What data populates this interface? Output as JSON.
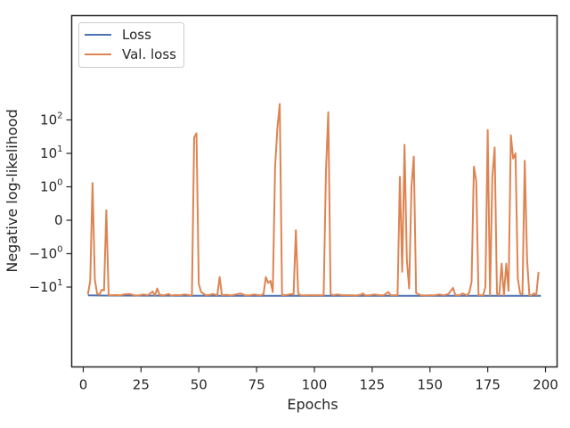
{
  "chart_data": {
    "type": "line",
    "title": "",
    "xlabel": "Epochs",
    "ylabel": "Negative log-likelihood",
    "xscale": "linear",
    "yscale": "symlog",
    "xlim": [
      -5,
      205
    ],
    "xticks": [
      {
        "value": 0,
        "label": "0"
      },
      {
        "value": 25,
        "label": "25"
      },
      {
        "value": 50,
        "label": "50"
      },
      {
        "value": 75,
        "label": "75"
      },
      {
        "value": 100,
        "label": "100"
      },
      {
        "value": 125,
        "label": "125"
      },
      {
        "value": 150,
        "label": "150"
      },
      {
        "value": 175,
        "label": "175"
      },
      {
        "value": 200,
        "label": "200"
      }
    ],
    "yticks": [
      {
        "value": -10,
        "base": "−10",
        "exp": "1"
      },
      {
        "value": -1,
        "base": "−10",
        "exp": "0"
      },
      {
        "value": 0,
        "base": "0",
        "exp": ""
      },
      {
        "value": 1,
        "base": "10",
        "exp": "0"
      },
      {
        "value": 10,
        "base": "10",
        "exp": "1"
      },
      {
        "value": 100,
        "base": "10",
        "exp": "2"
      }
    ],
    "grid": false,
    "legend_position": "top-left",
    "series": [
      {
        "name": "Loss",
        "color": "#4c72b0",
        "points": [
          [
            2,
            -17.6
          ],
          [
            10,
            -17.9
          ],
          [
            30,
            -18.0
          ],
          [
            60,
            -18.1
          ],
          [
            100,
            -18.2
          ],
          [
            150,
            -18.2
          ],
          [
            198,
            -18.3
          ]
        ]
      },
      {
        "name": "Val. loss",
        "color": "#dd8452",
        "points": [
          [
            2,
            -16.5
          ],
          [
            3,
            -6.5
          ],
          [
            4,
            1.3
          ],
          [
            5,
            -6.0
          ],
          [
            6,
            -15.5
          ],
          [
            7,
            -17.0
          ],
          [
            8,
            -12.0
          ],
          [
            9,
            -12.5
          ],
          [
            10,
            0.3
          ],
          [
            11,
            -17.5
          ],
          [
            12,
            -17.5
          ],
          [
            14,
            -17.3
          ],
          [
            16,
            -17.6
          ],
          [
            18,
            -16.3
          ],
          [
            20,
            -16.0
          ],
          [
            22,
            -17.5
          ],
          [
            24,
            -17.8
          ],
          [
            26,
            -16.5
          ],
          [
            28,
            -17.5
          ],
          [
            30,
            -13.5
          ],
          [
            31,
            -17.8
          ],
          [
            32,
            -11.0
          ],
          [
            33,
            -17.0
          ],
          [
            35,
            -17.5
          ],
          [
            37,
            -16.0
          ],
          [
            38,
            -17.8
          ],
          [
            40,
            -17.3
          ],
          [
            42,
            -17.5
          ],
          [
            44,
            -16.5
          ],
          [
            46,
            -17.5
          ],
          [
            47,
            -17.6
          ],
          [
            48,
            30.0
          ],
          [
            49,
            40.0
          ],
          [
            50,
            -8.0
          ],
          [
            51,
            -14.0
          ],
          [
            53,
            -17.5
          ],
          [
            55,
            -17.0
          ],
          [
            56,
            -16.0
          ],
          [
            58,
            -17.5
          ],
          [
            59,
            -5.0
          ],
          [
            60,
            -17.5
          ],
          [
            62,
            -17.0
          ],
          [
            64,
            -17.8
          ],
          [
            66,
            -16.5
          ],
          [
            68,
            -15.5
          ],
          [
            70,
            -17.5
          ],
          [
            72,
            -17.6
          ],
          [
            74,
            -16.5
          ],
          [
            76,
            -17.5
          ],
          [
            77,
            -17.5
          ],
          [
            78,
            -16.0
          ],
          [
            79,
            -5.0
          ],
          [
            80,
            -7.5
          ],
          [
            81,
            -6.5
          ],
          [
            82,
            -14.0
          ],
          [
            83,
            4.0
          ],
          [
            84,
            60.0
          ],
          [
            85,
            300.0
          ],
          [
            86,
            -17.5
          ],
          [
            88,
            -17.3
          ],
          [
            90,
            -16.0
          ],
          [
            91,
            -17.0
          ],
          [
            92,
            -0.3
          ],
          [
            93,
            -15.5
          ],
          [
            94,
            -17.5
          ],
          [
            96,
            -17.6
          ],
          [
            98,
            -17.5
          ],
          [
            100,
            -17.5
          ],
          [
            102,
            -17.5
          ],
          [
            104,
            -17.6
          ],
          [
            105,
            3.0
          ],
          [
            106,
            170.0
          ],
          [
            107,
            -16.0
          ],
          [
            108,
            -17.5
          ],
          [
            110,
            -16.5
          ],
          [
            112,
            -17.5
          ],
          [
            114,
            -17.5
          ],
          [
            116,
            -17.5
          ],
          [
            118,
            -17.8
          ],
          [
            120,
            -17.0
          ],
          [
            121,
            -15.5
          ],
          [
            122,
            -17.6
          ],
          [
            124,
            -17.5
          ],
          [
            126,
            -16.5
          ],
          [
            128,
            -17.5
          ],
          [
            130,
            -17.5
          ],
          [
            132,
            -14.0
          ],
          [
            133,
            -17.5
          ],
          [
            135,
            -17.5
          ],
          [
            136,
            -17.5
          ],
          [
            137,
            2.0
          ],
          [
            138,
            -3.5
          ],
          [
            139,
            18.0
          ],
          [
            140,
            -1.5
          ],
          [
            141,
            -11.0
          ],
          [
            142,
            1.0
          ],
          [
            143,
            8.0
          ],
          [
            144,
            -15.0
          ],
          [
            146,
            -17.5
          ],
          [
            148,
            -17.8
          ],
          [
            150,
            -17.5
          ],
          [
            152,
            -17.6
          ],
          [
            154,
            -16.5
          ],
          [
            156,
            -17.6
          ],
          [
            158,
            -16.0
          ],
          [
            160,
            -10.5
          ],
          [
            161,
            -17.5
          ],
          [
            163,
            -17.5
          ],
          [
            164,
            -15.5
          ],
          [
            166,
            -17.6
          ],
          [
            167,
            -14.5
          ],
          [
            168,
            -7.0
          ],
          [
            169,
            4.0
          ],
          [
            170,
            1.5
          ],
          [
            171,
            -17.5
          ],
          [
            173,
            -17.5
          ],
          [
            174,
            -10.0
          ],
          [
            175,
            50.0
          ],
          [
            176,
            -17.5
          ],
          [
            177,
            2.0
          ],
          [
            178,
            15.0
          ],
          [
            179,
            -15.5
          ],
          [
            180,
            -17.5
          ],
          [
            181,
            -2.0
          ],
          [
            182,
            -17.5
          ],
          [
            183,
            -2.0
          ],
          [
            184,
            -13.0
          ],
          [
            185,
            35.0
          ],
          [
            186,
            7.0
          ],
          [
            187,
            10.0
          ],
          [
            188,
            -5.5
          ],
          [
            189,
            -15.5
          ],
          [
            190,
            -16.5
          ],
          [
            191,
            6.0
          ],
          [
            192,
            -1.5
          ],
          [
            193,
            -17.5
          ],
          [
            194,
            -17.5
          ],
          [
            195,
            -15.5
          ],
          [
            196,
            -17.5
          ],
          [
            197,
            -3.5
          ]
        ]
      }
    ]
  }
}
